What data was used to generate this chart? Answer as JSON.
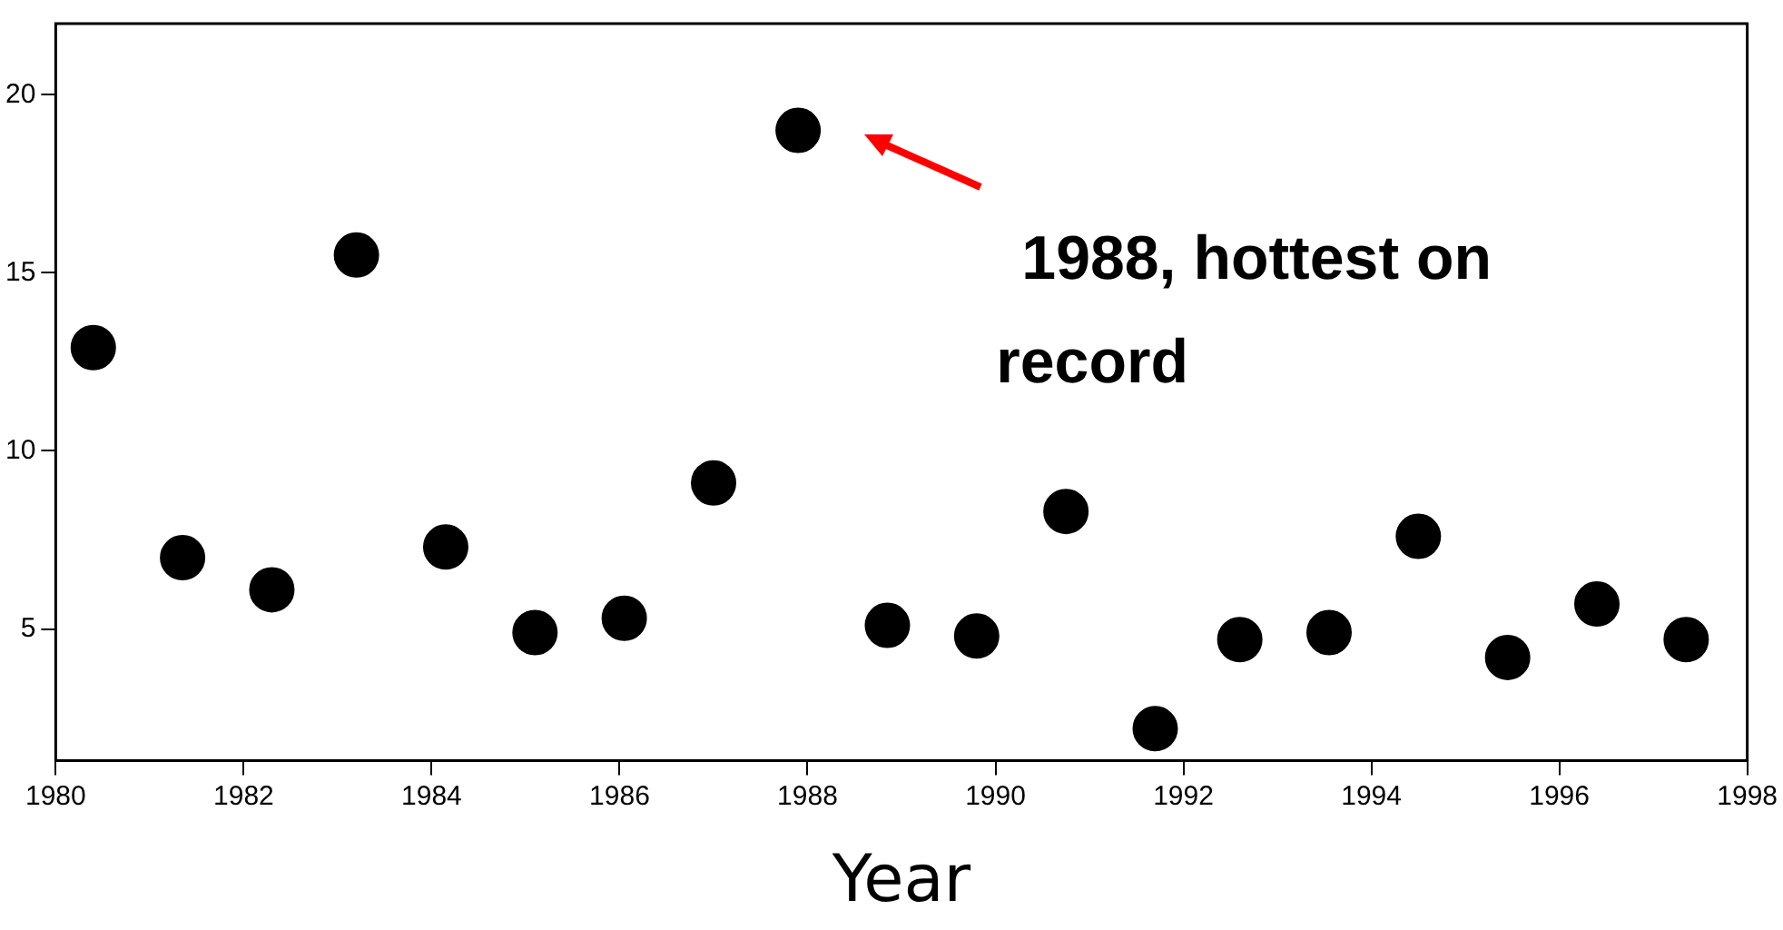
{
  "chart_data": {
    "type": "scatter",
    "xlabel": "Year",
    "x": [
      1980.4,
      1981.35,
      1982.3,
      1983.2,
      1984.15,
      1985.1,
      1986.05,
      1987.0,
      1987.9,
      1988.85,
      1989.8,
      1990.75,
      1991.7,
      1992.6,
      1993.55,
      1994.5,
      1995.45,
      1996.4,
      1997.35
    ],
    "values": [
      12.9,
      7.0,
      6.1,
      15.5,
      7.3,
      4.9,
      5.3,
      9.1,
      19.0,
      5.1,
      4.8,
      8.3,
      2.2,
      4.7,
      4.9,
      7.6,
      4.2,
      5.7,
      4.7
    ],
    "color": "#000000",
    "marker": "circle",
    "xlim": [
      1980,
      1998
    ],
    "xticks": [
      1980,
      1982,
      1984,
      1986,
      1988,
      1990,
      1992,
      1994,
      1996,
      1998
    ],
    "ylim": [
      1.3,
      22
    ],
    "yticks": [
      5,
      10,
      15,
      20
    ],
    "grid": false,
    "legend": false,
    "annotations": [
      "1988, hottest on record"
    ]
  }
}
